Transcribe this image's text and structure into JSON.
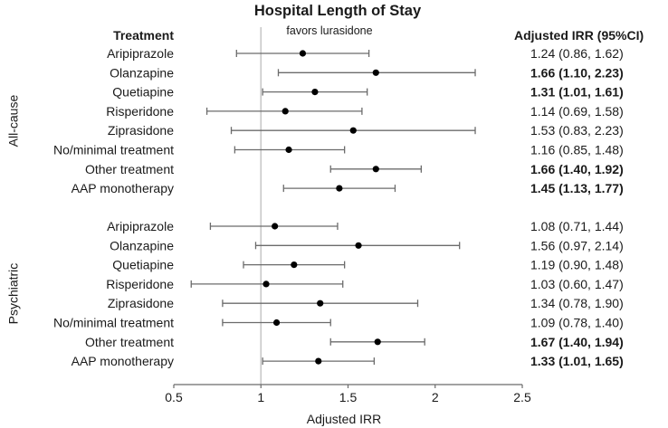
{
  "chart_data": {
    "type": "forest",
    "title": "Hospital Length of Stay",
    "xlabel": "Adjusted IRR",
    "xlim": [
      0.5,
      2.5
    ],
    "xticks": [
      0.5,
      1,
      1.5,
      2,
      2.5
    ],
    "xtick_labels": [
      "0.5",
      "1",
      "1.5",
      "2",
      "2.5"
    ],
    "reference_line": 1,
    "annotation": "favors lurasidone",
    "column_headers": {
      "treatment": "Treatment",
      "irr": "Adjusted IRR (95%CI)"
    },
    "groups": [
      {
        "name": "All-cause",
        "rows": [
          {
            "label": "Aripiprazole",
            "irr": 1.24,
            "lo": 0.86,
            "hi": 1.62,
            "text": "1.24 (0.86, 1.62)",
            "bold": false
          },
          {
            "label": "Olanzapine",
            "irr": 1.66,
            "lo": 1.1,
            "hi": 2.23,
            "text": "1.66 (1.10, 2.23)",
            "bold": true
          },
          {
            "label": "Quetiapine",
            "irr": 1.31,
            "lo": 1.01,
            "hi": 1.61,
            "text": "1.31 (1.01, 1.61)",
            "bold": true
          },
          {
            "label": "Risperidone",
            "irr": 1.14,
            "lo": 0.69,
            "hi": 1.58,
            "text": "1.14 (0.69, 1.58)",
            "bold": false
          },
          {
            "label": "Ziprasidone",
            "irr": 1.53,
            "lo": 0.83,
            "hi": 2.23,
            "text": "1.53 (0.83, 2.23)",
            "bold": false
          },
          {
            "label": "No/minimal treatment",
            "irr": 1.16,
            "lo": 0.85,
            "hi": 1.48,
            "text": "1.16 (0.85, 1.48)",
            "bold": false
          },
          {
            "label": "Other treatment",
            "irr": 1.66,
            "lo": 1.4,
            "hi": 1.92,
            "text": "1.66 (1.40, 1.92)",
            "bold": true
          },
          {
            "label": "AAP monotherapy",
            "irr": 1.45,
            "lo": 1.13,
            "hi": 1.77,
            "text": "1.45 (1.13, 1.77)",
            "bold": true
          }
        ]
      },
      {
        "name": "Psychiatric",
        "rows": [
          {
            "label": "Aripiprazole",
            "irr": 1.08,
            "lo": 0.71,
            "hi": 1.44,
            "text": "1.08 (0.71, 1.44)",
            "bold": false
          },
          {
            "label": "Olanzapine",
            "irr": 1.56,
            "lo": 0.97,
            "hi": 2.14,
            "text": "1.56 (0.97, 2.14)",
            "bold": false
          },
          {
            "label": "Quetiapine",
            "irr": 1.19,
            "lo": 0.9,
            "hi": 1.48,
            "text": "1.19 (0.90, 1.48)",
            "bold": false
          },
          {
            "label": "Risperidone",
            "irr": 1.03,
            "lo": 0.6,
            "hi": 1.47,
            "text": "1.03 (0.60, 1.47)",
            "bold": false
          },
          {
            "label": "Ziprasidone",
            "irr": 1.34,
            "lo": 0.78,
            "hi": 1.9,
            "text": "1.34 (0.78, 1.90)",
            "bold": false
          },
          {
            "label": "No/minimal treatment",
            "irr": 1.09,
            "lo": 0.78,
            "hi": 1.4,
            "text": "1.09 (0.78, 1.40)",
            "bold": false
          },
          {
            "label": "Other treatment",
            "irr": 1.67,
            "lo": 1.4,
            "hi": 1.94,
            "text": "1.67 (1.40, 1.94)",
            "bold": true
          },
          {
            "label": "AAP monotherapy",
            "irr": 1.33,
            "lo": 1.01,
            "hi": 1.65,
            "text": "1.33 (1.01, 1.65)",
            "bold": true
          }
        ]
      }
    ]
  }
}
